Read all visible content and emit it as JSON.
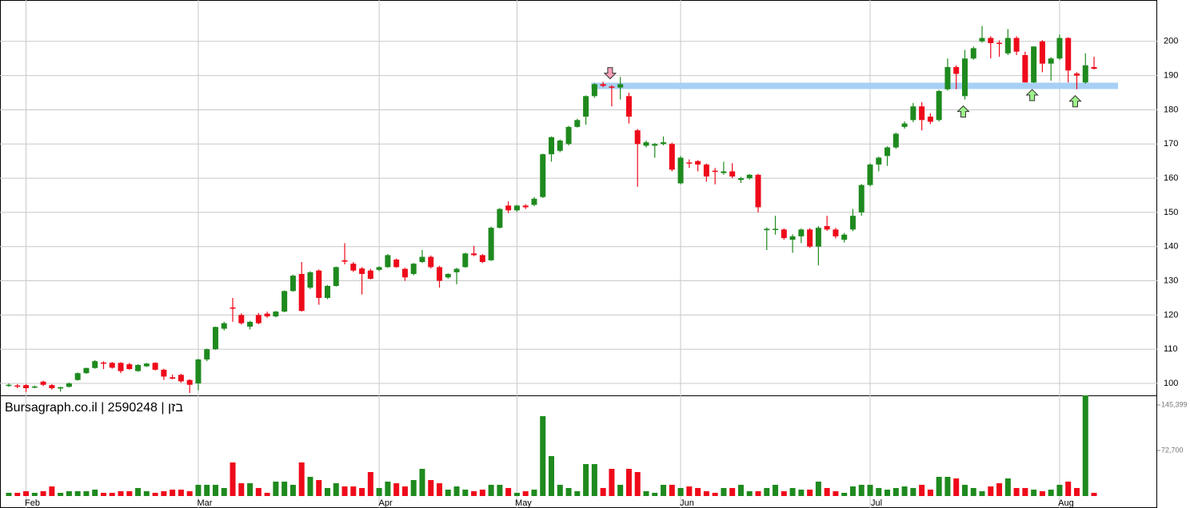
{
  "chart_data": {
    "type": "candlestick",
    "title": "Bursagraph.co.il | 2590248 | בזן",
    "up_color": "#1e8a1e",
    "down_color": "#ee0a1a",
    "grid": true,
    "ylim": [
      96.5,
      212.1
    ],
    "yticks": [
      100,
      110,
      120,
      130,
      140,
      150,
      160,
      170,
      180,
      190,
      200
    ],
    "y2lim": [
      0,
      160700
    ],
    "y2ticks": [
      {
        "value": 72700,
        "label": "72,700"
      },
      {
        "value": 145399,
        "label": "145,399"
      }
    ],
    "categories": [
      null,
      null,
      "Feb",
      null,
      null,
      null,
      null,
      null,
      null,
      null,
      null,
      null,
      null,
      null,
      null,
      null,
      null,
      null,
      null,
      null,
      null,
      null,
      "Mar",
      null,
      null,
      null,
      null,
      null,
      null,
      null,
      null,
      null,
      null,
      null,
      null,
      null,
      null,
      null,
      null,
      null,
      null,
      null,
      null,
      "Apr",
      null,
      null,
      null,
      null,
      null,
      null,
      null,
      null,
      null,
      null,
      null,
      null,
      null,
      null,
      null,
      "May",
      null,
      null,
      null,
      null,
      null,
      null,
      null,
      null,
      null,
      null,
      null,
      null,
      null,
      null,
      null,
      null,
      null,
      null,
      "Jun",
      null,
      null,
      null,
      null,
      null,
      null,
      null,
      null,
      null,
      null,
      null,
      null,
      null,
      null,
      null,
      null,
      null,
      null,
      null,
      null,
      null,
      "Jul",
      null,
      null,
      null,
      null,
      null,
      null,
      null,
      null,
      null,
      null,
      null,
      null,
      null,
      null,
      null,
      null,
      null,
      null,
      null,
      null,
      null,
      "Aug",
      null,
      null,
      null,
      null
    ],
    "ohlc": [
      [
        99.5,
        100,
        99,
        99.6
      ],
      [
        99.4,
        99.8,
        98.6,
        99.2
      ],
      [
        99.5,
        99.8,
        97.5,
        98.6
      ],
      [
        99,
        99.4,
        98.6,
        99.1
      ],
      [
        100.5,
        100.8,
        99.2,
        99.6
      ],
      [
        99.5,
        99.8,
        98.2,
        98.6
      ],
      [
        98.5,
        99,
        97.6,
        98.9
      ],
      [
        99,
        100.3,
        98.8,
        100
      ],
      [
        101,
        103.2,
        100.8,
        103
      ],
      [
        103,
        104.6,
        102.8,
        104.5
      ],
      [
        104.5,
        106.8,
        104.3,
        106.5
      ],
      [
        106.1,
        106.5,
        104.2,
        105.9
      ],
      [
        106,
        106.3,
        104.3,
        104.6
      ],
      [
        106,
        106.2,
        103,
        103.6
      ],
      [
        105.6,
        106,
        104,
        104.2
      ],
      [
        103.6,
        105.6,
        103.4,
        105.4
      ],
      [
        105,
        106,
        104.8,
        105.8
      ],
      [
        106,
        106.2,
        103.8,
        104
      ],
      [
        104,
        104.3,
        101,
        102
      ],
      [
        101.8,
        102.6,
        101.2,
        101.4
      ],
      [
        102.5,
        102.8,
        100.2,
        100.6
      ],
      [
        101,
        101.2,
        97.2,
        99.6
      ],
      [
        100,
        107.2,
        98,
        107
      ],
      [
        107,
        110.2,
        106.5,
        110
      ],
      [
        110,
        116.6,
        109.8,
        116.5
      ],
      [
        116,
        118,
        115.5,
        117.6
      ],
      [
        122.2,
        125,
        118,
        122
      ],
      [
        120,
        120.5,
        117.2,
        117.6
      ],
      [
        116.6,
        118.3,
        115.8,
        118
      ],
      [
        120,
        120.6,
        117.3,
        117.6
      ],
      [
        120.4,
        121,
        119.2,
        119.6
      ],
      [
        119.6,
        121.2,
        119.3,
        121
      ],
      [
        121,
        127.2,
        120.8,
        127
      ],
      [
        127,
        131.8,
        126.8,
        131.5
      ],
      [
        132,
        135.5,
        121,
        121.2
      ],
      [
        128,
        132.8,
        127.6,
        132.5
      ],
      [
        133,
        133.3,
        123,
        125
      ],
      [
        125,
        128.8,
        124.6,
        128.5
      ],
      [
        128.5,
        134.2,
        128.3,
        134
      ],
      [
        136,
        141,
        134.8,
        135.6
      ],
      [
        135,
        135.5,
        132.6,
        133
      ],
      [
        133.6,
        134,
        126,
        132
      ],
      [
        133,
        133.5,
        130.4,
        130.6
      ],
      [
        133.2,
        134.2,
        132.8,
        134
      ],
      [
        134,
        137.8,
        133.8,
        137.5
      ],
      [
        136.2,
        136.5,
        133.8,
        134
      ],
      [
        133.5,
        133.8,
        130,
        131
      ],
      [
        132,
        135.2,
        131.6,
        135
      ],
      [
        135.5,
        139,
        135.2,
        137
      ],
      [
        137,
        137.4,
        133.6,
        134
      ],
      [
        134,
        134.4,
        128,
        130
      ],
      [
        131,
        132.2,
        130.6,
        132
      ],
      [
        132.5,
        133.8,
        129,
        133.5
      ],
      [
        134,
        138.2,
        133.8,
        138
      ],
      [
        138,
        140.2,
        137.2,
        137.5
      ],
      [
        137.5,
        137.8,
        135.2,
        135.5
      ],
      [
        136,
        145.8,
        135.8,
        145.5
      ],
      [
        145.5,
        151.3,
        145.3,
        151
      ],
      [
        152,
        153.2,
        149.8,
        150.6
      ],
      [
        150.6,
        152.2,
        150.2,
        152
      ],
      [
        152,
        152.4,
        151,
        151.5
      ],
      [
        152.2,
        154.5,
        151.8,
        154
      ],
      [
        154.5,
        167.2,
        154.2,
        167
      ],
      [
        167,
        172.2,
        164.8,
        172
      ],
      [
        168,
        171.3,
        167.6,
        171
      ],
      [
        170,
        175.3,
        169.6,
        175
      ],
      [
        175,
        177.4,
        174.8,
        177
      ],
      [
        178,
        184.2,
        175.6,
        184
      ],
      [
        184,
        187.8,
        183.5,
        187.5
      ],
      [
        187.5,
        188.2,
        186.6,
        187
      ],
      [
        186.8,
        187.2,
        181,
        186.5
      ],
      [
        186.5,
        189.6,
        183,
        187.5
      ],
      [
        184,
        185,
        176,
        178
      ],
      [
        174,
        174.4,
        157.5,
        170
      ],
      [
        169.5,
        171,
        169,
        170.5
      ],
      [
        169.5,
        170.3,
        166,
        170
      ],
      [
        170,
        172.2,
        169.6,
        170.5
      ],
      [
        170,
        170.4,
        162,
        162.5
      ],
      [
        158.5,
        166.5,
        158.2,
        166
      ],
      [
        164.6,
        165.5,
        163,
        164.4
      ],
      [
        165,
        165.3,
        162,
        164
      ],
      [
        164,
        164.3,
        159,
        160.5
      ],
      [
        162.2,
        163,
        158.2,
        162
      ],
      [
        161.5,
        164.8,
        161,
        162
      ],
      [
        162,
        164.4,
        160,
        160.5
      ],
      [
        159.5,
        160.4,
        158.6,
        160
      ],
      [
        160,
        161.2,
        159.6,
        161
      ],
      [
        161,
        161.3,
        150,
        151.5
      ],
      [
        144.8,
        145.6,
        139,
        145.2
      ],
      [
        145,
        149,
        143.5,
        145.2
      ],
      [
        145,
        145.3,
        142,
        142.5
      ],
      [
        142,
        143.6,
        138.2,
        143
      ],
      [
        143,
        145.3,
        141,
        145
      ],
      [
        145,
        145.4,
        139.6,
        140
      ],
      [
        140,
        146,
        134.5,
        145.5
      ],
      [
        146,
        149,
        144.6,
        145
      ],
      [
        145,
        145.5,
        142.4,
        143
      ],
      [
        142,
        144,
        141.2,
        143.5
      ],
      [
        145,
        151,
        144.5,
        149
      ],
      [
        150,
        158.3,
        149,
        158
      ],
      [
        158,
        164.3,
        157.6,
        164
      ],
      [
        164,
        166.3,
        162,
        166
      ],
      [
        166.5,
        169.3,
        163.6,
        169
      ],
      [
        169,
        173.3,
        168.6,
        173
      ],
      [
        175,
        176.6,
        174.5,
        176
      ],
      [
        177,
        182,
        176.4,
        181
      ],
      [
        181,
        182.2,
        174,
        177
      ],
      [
        178,
        179,
        175.8,
        176.5
      ],
      [
        177,
        185.8,
        176.6,
        185.5
      ],
      [
        186,
        195,
        185.6,
        192.5
      ],
      [
        192.5,
        193,
        186,
        190.5
      ],
      [
        184,
        197.5,
        183,
        195
      ],
      [
        195,
        198.5,
        194.6,
        198
      ],
      [
        200,
        204.5,
        199.6,
        201
      ],
      [
        201,
        201.5,
        195,
        199.5
      ],
      [
        199.6,
        200.3,
        195.5,
        199.4
      ],
      [
        196.5,
        203.6,
        196,
        201
      ],
      [
        201,
        201.5,
        196,
        197
      ],
      [
        196,
        197,
        188,
        188
      ],
      [
        188,
        198.6,
        187.8,
        198.5
      ],
      [
        200,
        200.4,
        191,
        193.5
      ],
      [
        193.5,
        195.4,
        188.5,
        195
      ],
      [
        195,
        202,
        194.6,
        201
      ],
      [
        201,
        201.2,
        188,
        191.5
      ],
      [
        190.6,
        191,
        186,
        190
      ],
      [
        188,
        196.5,
        187.6,
        193
      ],
      [
        192.5,
        195.5,
        191.8,
        192
      ]
    ],
    "volume": [
      5100,
      5100,
      7700,
      5100,
      7700,
      15300,
      5100,
      7700,
      7700,
      7700,
      10200,
      5100,
      5100,
      7700,
      7700,
      12800,
      7700,
      5100,
      7700,
      10200,
      10200,
      7700,
      17900,
      17900,
      17900,
      12800,
      53600,
      20400,
      20400,
      12800,
      5100,
      23000,
      23000,
      17900,
      53600,
      30600,
      25500,
      12800,
      20400,
      15300,
      15300,
      12800,
      38300,
      12800,
      23000,
      20400,
      15300,
      25500,
      43400,
      25500,
      20400,
      10200,
      15300,
      10200,
      7700,
      10200,
      17900,
      17900,
      12800,
      5100,
      7700,
      10200,
      127500,
      63800,
      17900,
      12800,
      7700,
      51000,
      51000,
      12800,
      43400,
      17900,
      43400,
      38300,
      7700,
      5100,
      17900,
      17900,
      12800,
      15300,
      12800,
      7700,
      5100,
      12800,
      12800,
      17900,
      7700,
      7700,
      12800,
      17900,
      7700,
      12800,
      10200,
      10200,
      23000,
      12800,
      7700,
      5100,
      15300,
      17900,
      17900,
      12800,
      10200,
      12800,
      15300,
      12800,
      17900,
      10200,
      30600,
      30600,
      28100,
      17900,
      12800,
      7700,
      15300,
      20400,
      28100,
      12800,
      12800,
      10200,
      7700,
      10200,
      17900,
      23000,
      12800,
      160700,
      5100
    ],
    "level_line": {
      "value": 187,
      "start_index": 68,
      "color": "#a8d0f5"
    },
    "markers": [
      {
        "index": 70,
        "direction": "down",
        "color": "#f7a0b8"
      },
      {
        "index": 111,
        "direction": "up",
        "color": "#9ef08a"
      },
      {
        "index": 119,
        "direction": "up",
        "color": "#9ef08a"
      },
      {
        "index": 124,
        "direction": "up",
        "color": "#9ef08a"
      }
    ]
  }
}
